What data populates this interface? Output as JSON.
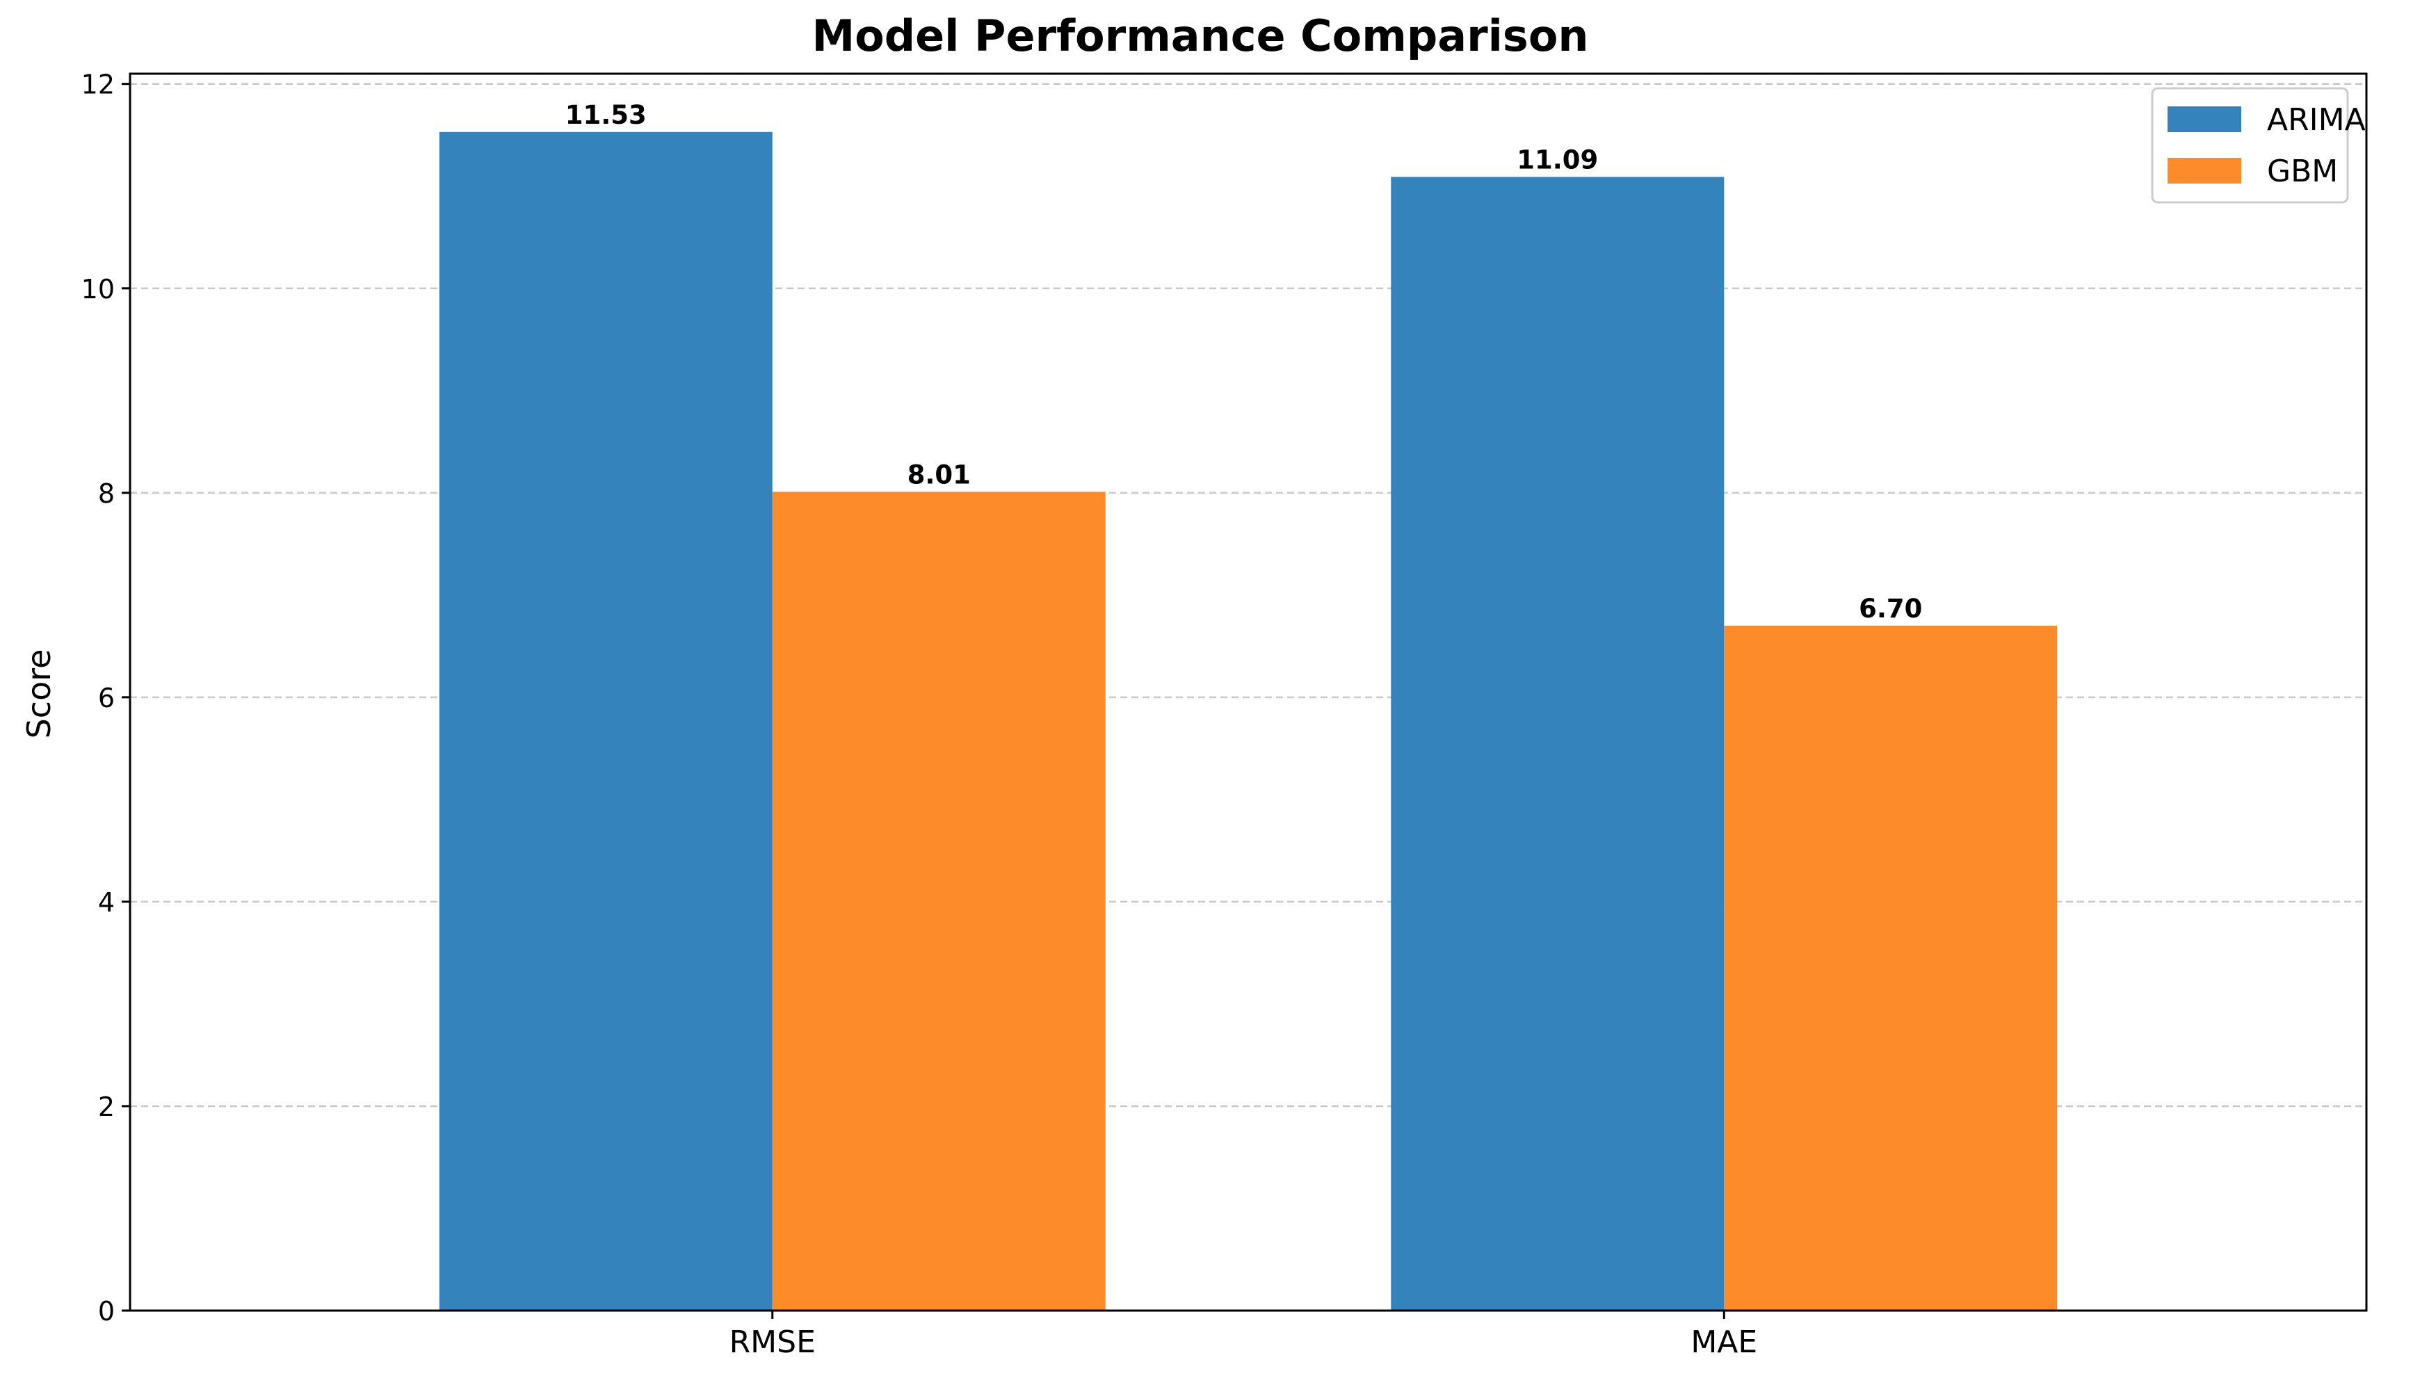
{
  "chart_data": {
    "type": "bar",
    "title": "Model Performance Comparison",
    "xlabel": "",
    "ylabel": "Score",
    "categories": [
      "RMSE",
      "MAE"
    ],
    "series": [
      {
        "name": "ARIMA",
        "values": [
          11.53,
          11.09
        ],
        "labels": [
          "11.53",
          "11.09"
        ],
        "color": "#3583bc"
      },
      {
        "name": "GBM",
        "values": [
          8.01,
          6.7
        ],
        "labels": [
          "8.01",
          "6.70"
        ],
        "color": "#fe8b2a"
      }
    ],
    "ylim": [
      0,
      12.1
    ],
    "yticks": [
      0,
      2,
      4,
      6,
      8,
      10,
      12
    ],
    "ytick_labels": [
      "0",
      "2",
      "4",
      "6",
      "8",
      "10",
      "12"
    ],
    "grid": "y-dashed",
    "legend": "top-right"
  }
}
